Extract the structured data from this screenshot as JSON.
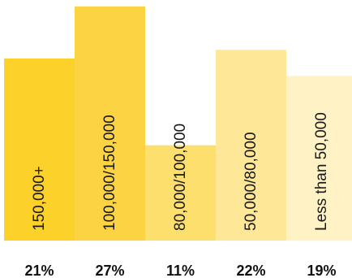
{
  "chart_data": {
    "type": "bar",
    "categories": [
      "150,000+",
      "100,000/150,000",
      "80,000/100,000",
      "50,000/80,000",
      "Less than 50,000"
    ],
    "values": [
      21,
      27,
      11,
      22,
      19
    ],
    "value_labels": [
      "21%",
      "27%",
      "11%",
      "22%",
      "19%"
    ],
    "colors": [
      "#FCD12A",
      "#FCD443",
      "#FDDF6E",
      "#FEE796",
      "#FFF2C4"
    ],
    "title": "",
    "xlabel": "",
    "ylabel": "",
    "grid": false,
    "legend": "none"
  }
}
